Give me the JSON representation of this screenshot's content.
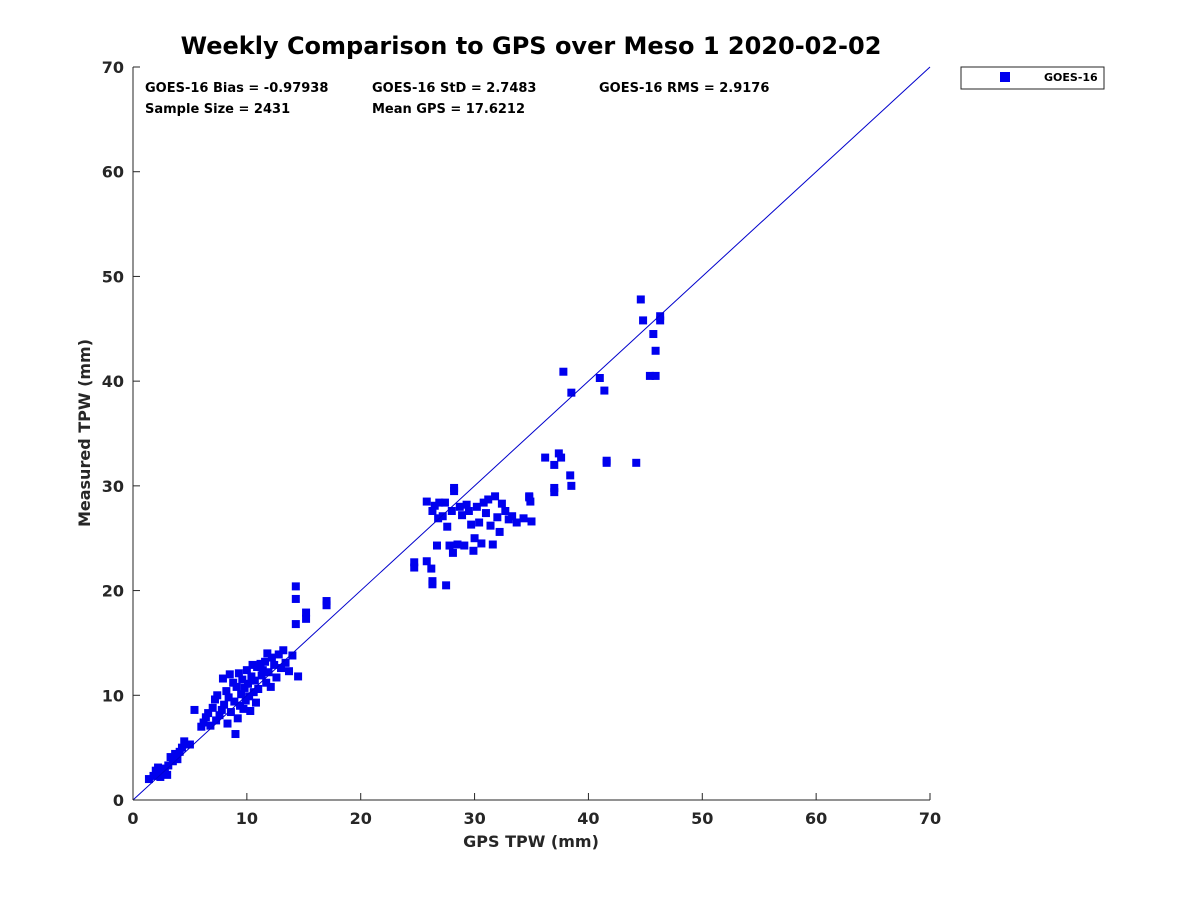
{
  "chart_data": {
    "type": "scatter",
    "title": "Weekly Comparison to GPS over Meso 1 2020-02-02",
    "xlabel": "GPS TPW (mm)",
    "ylabel": "Measured TPW (mm)",
    "xlim": [
      0,
      70
    ],
    "ylim": [
      0,
      70
    ],
    "xticks": [
      "0",
      "10",
      "20",
      "30",
      "40",
      "50",
      "60",
      "70"
    ],
    "yticks": [
      "0",
      "10",
      "20",
      "30",
      "40",
      "50",
      "60",
      "70"
    ],
    "grid": false,
    "legend_position": "outside-top-right",
    "reference_line": {
      "from": [
        0,
        0
      ],
      "to": [
        70,
        70
      ],
      "color": "#0000cc"
    },
    "stats": {
      "bias": "GOES-16 Bias = -0.97938",
      "std": "GOES-16 StD = 2.7483",
      "rms": "GOES-16 RMS = 2.9176",
      "sample_size": "Sample Size = 2431",
      "mean_gps": "Mean GPS = 17.6212"
    },
    "series": [
      {
        "name": "GOES-16",
        "color": "#0000ee",
        "marker": "square",
        "points": [
          [
            1.4,
            2.0
          ],
          [
            1.8,
            2.3
          ],
          [
            2.0,
            2.8
          ],
          [
            2.2,
            3.1
          ],
          [
            2.4,
            2.2
          ],
          [
            2.6,
            2.6
          ],
          [
            2.8,
            3.0
          ],
          [
            3.0,
            2.4
          ],
          [
            3.1,
            3.3
          ],
          [
            3.3,
            4.1
          ],
          [
            3.5,
            3.7
          ],
          [
            3.7,
            4.4
          ],
          [
            3.9,
            3.9
          ],
          [
            4.1,
            4.6
          ],
          [
            4.3,
            5.0
          ],
          [
            4.5,
            5.6
          ],
          [
            4.8,
            5.3
          ],
          [
            5.0,
            5.3
          ],
          [
            5.4,
            8.6
          ],
          [
            6.0,
            7.0
          ],
          [
            6.2,
            7.4
          ],
          [
            6.4,
            7.9
          ],
          [
            6.6,
            8.3
          ],
          [
            6.8,
            7.1
          ],
          [
            7.0,
            8.8
          ],
          [
            7.2,
            9.6
          ],
          [
            7.3,
            7.6
          ],
          [
            7.4,
            10.0
          ],
          [
            7.6,
            8.1
          ],
          [
            7.8,
            8.6
          ],
          [
            7.9,
            11.6
          ],
          [
            8.0,
            9.1
          ],
          [
            8.2,
            10.4
          ],
          [
            8.3,
            7.3
          ],
          [
            8.4,
            9.8
          ],
          [
            8.5,
            12.0
          ],
          [
            8.6,
            8.4
          ],
          [
            8.8,
            11.2
          ],
          [
            8.9,
            9.4
          ],
          [
            9.0,
            6.3
          ],
          [
            9.1,
            10.8
          ],
          [
            9.2,
            7.8
          ],
          [
            9.3,
            12.1
          ],
          [
            9.4,
            9.0
          ],
          [
            9.5,
            10.1
          ],
          [
            9.6,
            11.5
          ],
          [
            9.7,
            8.7
          ],
          [
            9.8,
            10.7
          ],
          [
            9.9,
            9.5
          ],
          [
            10.0,
            12.4
          ],
          [
            10.1,
            11.1
          ],
          [
            10.2,
            9.9
          ],
          [
            10.3,
            8.5
          ],
          [
            10.4,
            11.8
          ],
          [
            10.5,
            12.9
          ],
          [
            10.6,
            10.3
          ],
          [
            10.7,
            11.4
          ],
          [
            10.8,
            9.3
          ],
          [
            10.9,
            12.7
          ],
          [
            11.0,
            10.6
          ],
          [
            11.2,
            13.0
          ],
          [
            11.3,
            11.9
          ],
          [
            11.4,
            12.4
          ],
          [
            11.6,
            13.2
          ],
          [
            11.7,
            11.2
          ],
          [
            11.8,
            14.0
          ],
          [
            11.9,
            12.2
          ],
          [
            12.1,
            10.8
          ],
          [
            12.2,
            13.6
          ],
          [
            12.4,
            12.9
          ],
          [
            12.6,
            11.7
          ],
          [
            12.8,
            13.9
          ],
          [
            13.0,
            12.6
          ],
          [
            13.2,
            14.3
          ],
          [
            13.4,
            13.1
          ],
          [
            13.7,
            12.3
          ],
          [
            14.0,
            13.8
          ],
          [
            14.5,
            11.8
          ],
          [
            14.3,
            20.4
          ],
          [
            14.3,
            19.2
          ],
          [
            14.3,
            16.8
          ],
          [
            15.2,
            17.9
          ],
          [
            15.2,
            17.3
          ],
          [
            17.0,
            19.0
          ],
          [
            17.0,
            18.6
          ],
          [
            24.7,
            22.7
          ],
          [
            24.7,
            22.2
          ],
          [
            25.8,
            22.8
          ],
          [
            26.2,
            22.1
          ],
          [
            26.3,
            20.9
          ],
          [
            26.3,
            20.6
          ],
          [
            27.5,
            20.5
          ],
          [
            25.8,
            28.5
          ],
          [
            26.3,
            27.6
          ],
          [
            26.5,
            28.1
          ],
          [
            26.7,
            24.3
          ],
          [
            26.8,
            26.9
          ],
          [
            26.9,
            28.4
          ],
          [
            27.2,
            27.1
          ],
          [
            27.4,
            28.4
          ],
          [
            27.6,
            26.1
          ],
          [
            27.8,
            24.3
          ],
          [
            28.0,
            27.6
          ],
          [
            28.1,
            23.6
          ],
          [
            28.2,
            29.8
          ],
          [
            28.2,
            29.5
          ],
          [
            28.5,
            24.4
          ],
          [
            28.7,
            28.0
          ],
          [
            28.9,
            27.2
          ],
          [
            29.1,
            24.3
          ],
          [
            29.3,
            28.2
          ],
          [
            29.5,
            27.6
          ],
          [
            29.7,
            26.3
          ],
          [
            29.9,
            23.8
          ],
          [
            30.0,
            25.0
          ],
          [
            30.2,
            28.0
          ],
          [
            30.4,
            26.5
          ],
          [
            30.6,
            24.5
          ],
          [
            30.8,
            28.4
          ],
          [
            31.0,
            27.4
          ],
          [
            31.2,
            28.7
          ],
          [
            31.4,
            26.2
          ],
          [
            31.6,
            24.4
          ],
          [
            31.8,
            29.0
          ],
          [
            32.0,
            27.0
          ],
          [
            32.2,
            25.6
          ],
          [
            32.4,
            28.3
          ],
          [
            32.7,
            27.6
          ],
          [
            33.0,
            26.8
          ],
          [
            33.3,
            27.1
          ],
          [
            33.7,
            26.5
          ],
          [
            34.3,
            26.9
          ],
          [
            34.8,
            28.9
          ],
          [
            34.8,
            29.0
          ],
          [
            34.9,
            28.5
          ],
          [
            35.0,
            26.6
          ],
          [
            36.2,
            32.7
          ],
          [
            37.0,
            32.0
          ],
          [
            37.0,
            29.8
          ],
          [
            37.0,
            29.4
          ],
          [
            37.4,
            33.1
          ],
          [
            37.6,
            32.7
          ],
          [
            38.4,
            31.0
          ],
          [
            38.5,
            30.0
          ],
          [
            41.6,
            32.4
          ],
          [
            41.6,
            32.2
          ],
          [
            44.2,
            32.2
          ],
          [
            37.8,
            40.9
          ],
          [
            38.5,
            38.9
          ],
          [
            41.0,
            40.3
          ],
          [
            41.4,
            39.1
          ],
          [
            44.6,
            47.8
          ],
          [
            44.8,
            45.8
          ],
          [
            45.7,
            44.5
          ],
          [
            45.4,
            40.5
          ],
          [
            45.9,
            40.5
          ],
          [
            45.9,
            42.9
          ],
          [
            46.3,
            46.2
          ],
          [
            46.3,
            45.8
          ]
        ]
      }
    ]
  }
}
